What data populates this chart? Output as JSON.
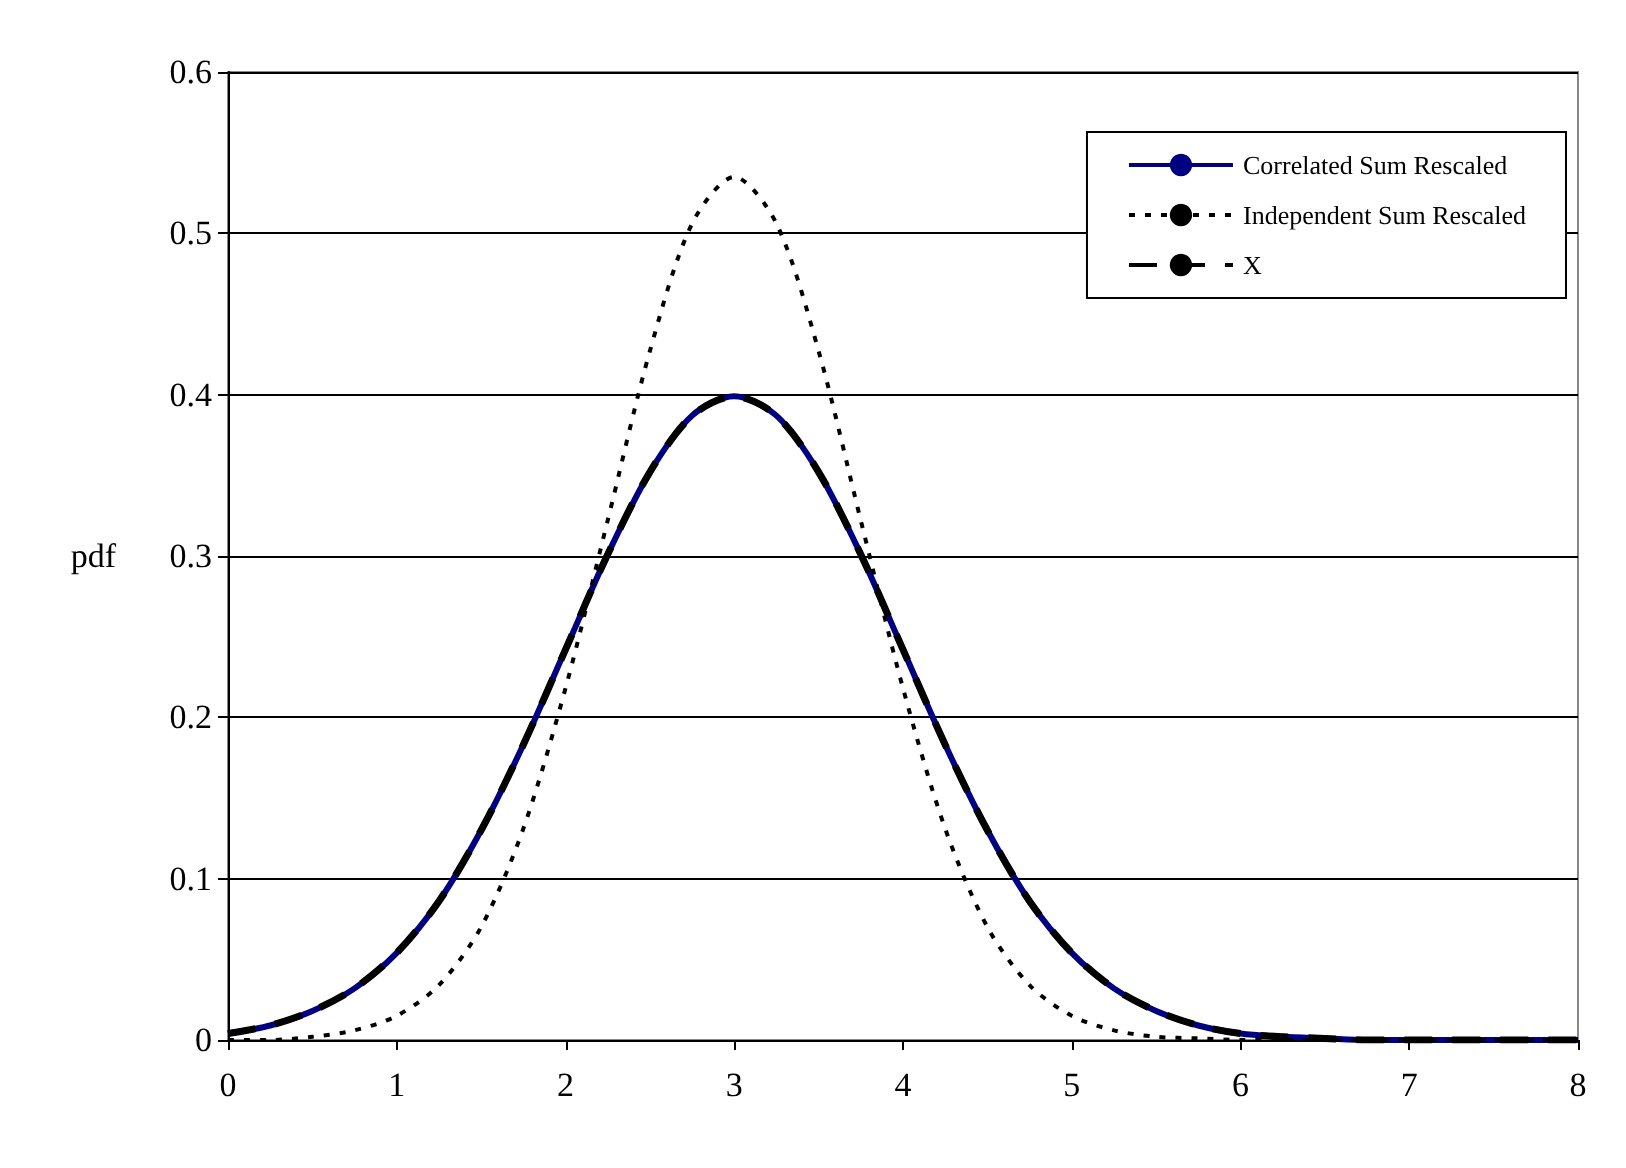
{
  "chart_data": {
    "type": "line",
    "ylabel": "pdf",
    "x": [
      0,
      0.25,
      0.5,
      0.75,
      1,
      1.25,
      1.5,
      1.75,
      2,
      2.25,
      2.5,
      2.75,
      3,
      3.25,
      3.5,
      3.75,
      4,
      4.25,
      4.5,
      4.75,
      5,
      5.25,
      5.5,
      5.75,
      6,
      6.25,
      6.5,
      6.75,
      7,
      7.25,
      7.5,
      7.75,
      8
    ],
    "series": [
      {
        "name": "Correlated Sum Rescaled",
        "color": "#000080",
        "line_style": "solid",
        "values": [
          0.004,
          0.009,
          0.018,
          0.032,
          0.054,
          0.086,
          0.13,
          0.183,
          0.242,
          0.301,
          0.352,
          0.387,
          0.399,
          0.387,
          0.352,
          0.301,
          0.242,
          0.183,
          0.13,
          0.086,
          0.054,
          0.032,
          0.018,
          0.009,
          0.004,
          0.002,
          0.001,
          0,
          0,
          0,
          0,
          0,
          0
        ]
      },
      {
        "name": "Independent Sum Rescaled",
        "color": "#000000",
        "line_style": "dotted",
        "values": [
          0,
          0,
          0.002,
          0.006,
          0.015,
          0.034,
          0.07,
          0.131,
          0.218,
          0.322,
          0.427,
          0.506,
          0.535,
          0.506,
          0.427,
          0.322,
          0.218,
          0.131,
          0.07,
          0.034,
          0.015,
          0.006,
          0.002,
          0.001,
          0,
          0,
          0,
          0,
          0,
          0,
          0,
          0,
          0
        ]
      },
      {
        "name": "X",
        "color": "#000000",
        "line_style": "dashed",
        "values": [
          0.004,
          0.009,
          0.018,
          0.032,
          0.054,
          0.086,
          0.13,
          0.183,
          0.242,
          0.301,
          0.352,
          0.387,
          0.399,
          0.387,
          0.352,
          0.301,
          0.242,
          0.183,
          0.13,
          0.086,
          0.054,
          0.032,
          0.018,
          0.009,
          0.004,
          0.002,
          0.001,
          0,
          0,
          0,
          0,
          0,
          0
        ]
      }
    ],
    "xlim": [
      0,
      8
    ],
    "xticks": [
      0,
      1,
      2,
      3,
      4,
      5,
      6,
      7,
      8
    ],
    "ylim": [
      0,
      0.6
    ],
    "yticks": [
      0,
      0.1,
      0.2,
      0.3,
      0.4,
      0.5,
      0.6
    ],
    "grid": "y",
    "legend": "top right",
    "marker": "none"
  }
}
